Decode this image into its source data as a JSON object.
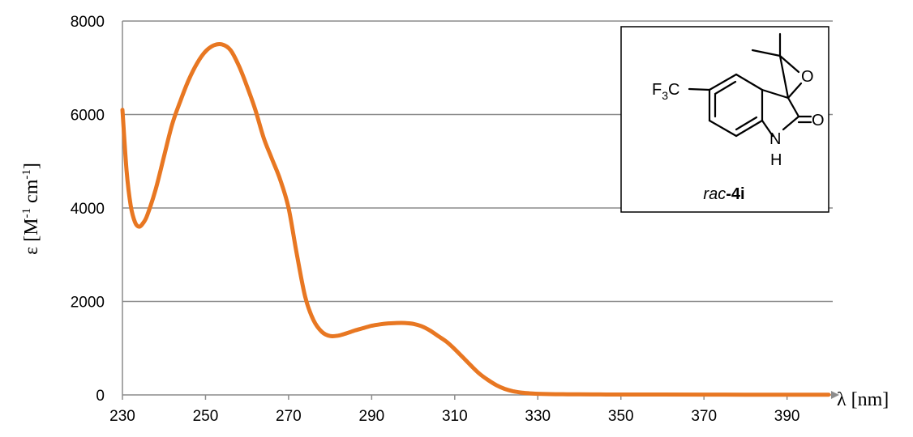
{
  "chart_data": {
    "type": "line",
    "title": "",
    "xlabel": "λ [nm]",
    "ylabel": "ε [M-1 cm-1]",
    "ylabel_parts": {
      "prefix": "ε [M",
      "sup1": "-1",
      "mid": " cm",
      "sup2": "-1",
      "suffix": "]"
    },
    "xlim": [
      230,
      401
    ],
    "ylim": [
      0,
      8000
    ],
    "x_ticks": [
      230,
      250,
      270,
      290,
      310,
      330,
      350,
      370,
      390
    ],
    "y_ticks": [
      0,
      2000,
      4000,
      6000,
      8000
    ],
    "grid": {
      "horizontal": true,
      "vertical": false
    },
    "colors": {
      "series": "#E87722",
      "grid": "#8c8c8c",
      "axis": "#8c8c8c"
    },
    "series": [
      {
        "x": [
          230,
          231,
          232,
          233,
          234,
          235,
          236,
          238,
          240,
          242,
          244,
          246,
          248,
          250,
          252,
          254,
          256,
          258,
          260,
          262,
          264,
          266,
          268,
          270,
          272,
          274,
          276,
          278,
          280,
          282,
          284,
          286,
          288,
          290,
          292,
          294,
          296,
          298,
          300,
          302,
          304,
          306,
          308,
          310,
          312,
          314,
          316,
          318,
          320,
          322,
          324,
          326,
          328,
          330,
          333,
          336,
          340,
          345,
          350,
          360,
          370,
          380,
          390,
          400
        ],
        "y": [
          6100,
          4800,
          4050,
          3700,
          3600,
          3680,
          3850,
          4400,
          5100,
          5800,
          6300,
          6750,
          7100,
          7350,
          7480,
          7500,
          7380,
          7050,
          6600,
          6100,
          5500,
          5050,
          4600,
          4000,
          3000,
          2100,
          1600,
          1350,
          1260,
          1270,
          1320,
          1380,
          1430,
          1480,
          1510,
          1530,
          1540,
          1540,
          1520,
          1470,
          1380,
          1260,
          1140,
          980,
          800,
          620,
          450,
          320,
          210,
          130,
          80,
          50,
          35,
          25,
          18,
          15,
          12,
          10,
          9,
          8,
          7,
          6,
          5,
          5
        ]
      }
    ]
  },
  "inset": {
    "compound_prefix": "rac",
    "compound_suffix": "-4i",
    "atoms": {
      "O_epoxide": "O",
      "O_carbonyl": "O",
      "N": "N",
      "H": "H",
      "F": "F",
      "F_sub": "3",
      "C": "C"
    }
  }
}
